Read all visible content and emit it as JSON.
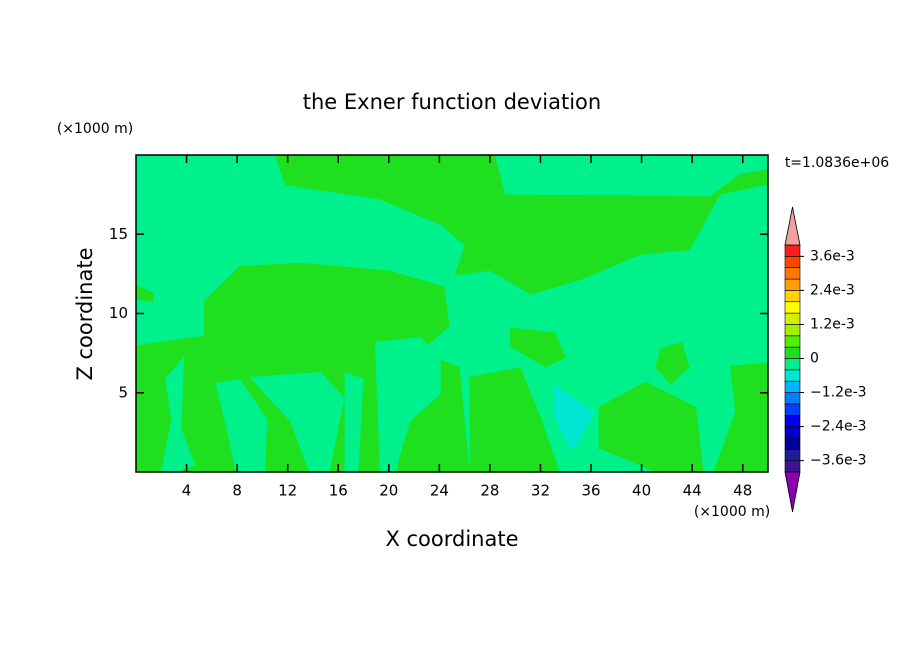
{
  "chart_data": {
    "type": "contour",
    "title": "the Exner function deviation",
    "xlabel": "X coordinate",
    "ylabel": "Z coordinate",
    "x_unit": "(×1000 m)",
    "y_unit": "(×1000 m)",
    "time_label": "t=1.0836e+06",
    "xlim": [
      0,
      50
    ],
    "ylim": [
      0,
      20
    ],
    "xticks": [
      4,
      8,
      12,
      16,
      20,
      24,
      28,
      32,
      36,
      40,
      44,
      48
    ],
    "yticks": [
      5,
      10,
      15
    ],
    "levels": [
      -0.004,
      -0.0036,
      -0.0032,
      -0.0028,
      -0.0024,
      -0.002,
      -0.0016,
      -0.0012,
      -0.0008,
      -0.0004,
      0,
      0.0004,
      0.0008,
      0.0012,
      0.0016,
      0.002,
      0.0024,
      0.0028,
      0.0032,
      0.0036,
      0.004
    ],
    "colors": [
      "#3c1496",
      "#1e1e96",
      "#0000a0",
      "#0000c8",
      "#0000f0",
      "#0040ff",
      "#0080ff",
      "#00b4ff",
      "#00e6d2",
      "#00f08c",
      "#1ee01e",
      "#50f000",
      "#a0f000",
      "#d2f000",
      "#ffff00",
      "#ffd200",
      "#ffa000",
      "#ff7800",
      "#ff4600",
      "#ff1e1e"
    ],
    "under_color": "#8c00b4",
    "over_color": "#f4a0a0",
    "colorbar_ticks": [
      {
        "value": 0.0036,
        "label": "3.6e-3"
      },
      {
        "value": 0.0024,
        "label": "2.4e-3"
      },
      {
        "value": 0.0012,
        "label": "1.2e-3"
      },
      0,
      {
        "value": -0.0012,
        "label": "−1.2e-3"
      },
      {
        "value": -0.0024,
        "label": "−2.4e-3"
      },
      {
        "value": -0.0036,
        "label": "−3.6e-3"
      }
    ],
    "background_value": -0.0002,
    "regions": [
      {
        "value": 0.0002,
        "x": [
          11.0,
          28.4,
          29.2,
          45.4,
          47.8,
          50,
          50,
          49.8,
          46.2,
          43.8,
          39.9,
          35.1,
          31.2,
          28.0,
          25.2,
          26.0,
          24.1,
          19.3,
          11.8
        ],
        "z": [
          20,
          20,
          17.5,
          17.4,
          18.8,
          19.1,
          18.1,
          18.1,
          17.5,
          14.0,
          13.7,
          12.1,
          11.2,
          12.7,
          12.4,
          14.3,
          15.6,
          17.2,
          18.1
        ]
      },
      {
        "value": 0.0002,
        "x": [
          0,
          5.4,
          5.4,
          8.2,
          13.0,
          20.1,
          24.4,
          24.8,
          22.5,
          25.6,
          26.4,
          0
        ],
        "z": [
          8.0,
          8.6,
          10.8,
          13.0,
          13.2,
          12.7,
          11.7,
          9.2,
          7.6,
          6.6,
          0,
          0
        ]
      },
      {
        "value": -0.0002,
        "x": [
          2.3,
          3.8,
          3.6,
          4.7,
          3.1,
          2.0,
          2.8
        ],
        "z": [
          5.9,
          7.3,
          2.7,
          0.4,
          0,
          0.1,
          3.3
        ]
      },
      {
        "value": -0.0002,
        "x": [
          6.3,
          8.2,
          10.4,
          10.2,
          7.9,
          7.0
        ],
        "z": [
          5.6,
          5.9,
          3.3,
          0,
          0,
          3.3
        ]
      },
      {
        "value": -0.0002,
        "x": [
          9.0,
          14.6,
          16.5,
          15.3,
          13.7,
          12.2,
          10.2
        ],
        "z": [
          6.0,
          6.3,
          4.7,
          0,
          0,
          3.2,
          4.9
        ]
      },
      {
        "value": -0.0002,
        "x": [
          16.5,
          18.0,
          17.6,
          16.5
        ],
        "z": [
          6.3,
          5.9,
          0,
          0
        ]
      },
      {
        "value": -0.0002,
        "x": [
          18.9,
          22.5,
          24.1,
          24.1,
          21.7,
          20.5,
          19.3
        ],
        "z": [
          8.2,
          8.5,
          7.3,
          4.9,
          3.2,
          0,
          0
        ]
      },
      {
        "value": 0.0002,
        "x": [
          26.4,
          30.4,
          32.0,
          33.5,
          26.4
        ],
        "z": [
          6.0,
          6.6,
          3.5,
          0,
          0
        ]
      },
      {
        "value": 0.0002,
        "x": [
          36.6,
          40.3,
          44.3,
          44.9,
          41.1,
          36.6
        ],
        "z": [
          4.1,
          5.7,
          4.1,
          0,
          0,
          1.5
        ]
      },
      {
        "value": 0.0002,
        "x": [
          47.0,
          50,
          50,
          45.7,
          47.4
        ],
        "z": [
          6.7,
          6.9,
          0,
          0,
          3.8
        ]
      },
      {
        "value": 0.0002,
        "x": [
          41.5,
          43.2,
          43.8,
          42.3,
          41.1
        ],
        "z": [
          7.8,
          8.2,
          6.6,
          5.5,
          6.6
        ]
      },
      {
        "value": 0.0002,
        "x": [
          29.6,
          33.2,
          34.0,
          32.4,
          29.6
        ],
        "z": [
          9.1,
          8.8,
          7.2,
          6.6,
          7.9
        ]
      },
      {
        "value": -0.0006,
        "x": [
          33.1,
          35.7,
          36.3,
          34.8,
          34.4,
          33.1
        ],
        "z": [
          5.5,
          4.1,
          3.8,
          1.6,
          1.4,
          3.5
        ]
      },
      {
        "value": 0.0002,
        "x": [
          0,
          1.4,
          1.4,
          0
        ],
        "z": [
          11.8,
          11.3,
          10.7,
          10.9
        ]
      }
    ]
  }
}
